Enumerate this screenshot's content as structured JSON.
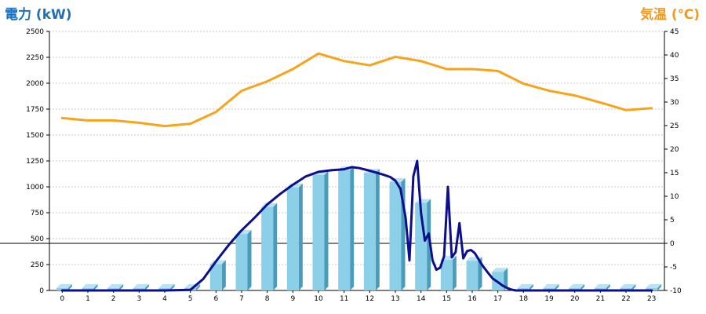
{
  "colors": {
    "power_title": "#1f6fb8",
    "temp_title": "#f39a1e",
    "temp_line": "#f7a41a",
    "power_line": "#0b0f8c",
    "bar_face": "#8ccfe8",
    "bar_side": "#4b9bbd",
    "bar_top": "#b9e2f2",
    "grid": "#c8c8c8"
  },
  "chart_data": {
    "type": "bar+line",
    "left_axis_title": "電力 (kW)",
    "right_axis_title": "気温 (℃)",
    "categories": [
      "0",
      "1",
      "2",
      "3",
      "4",
      "5",
      "6",
      "7",
      "8",
      "9",
      "10",
      "11",
      "12",
      "13",
      "14",
      "15",
      "16",
      "17",
      "18",
      "19",
      "20",
      "21",
      "22",
      "23"
    ],
    "left_ticks": [
      "0",
      "250",
      "500",
      "750",
      "1000",
      "1250",
      "1500",
      "1750",
      "2000",
      "2250",
      "2500"
    ],
    "right_ticks": [
      "-10",
      "-5",
      "0",
      "5",
      "10",
      "15",
      "20",
      "25",
      "30",
      "35",
      "40",
      "45"
    ],
    "ylim_left": [
      0,
      2500
    ],
    "ylim_right": [
      -10,
      45
    ],
    "reference_line_right": 0,
    "grid": true,
    "series": [
      {
        "kind": "bar",
        "axis": "left",
        "values": [
          0,
          0,
          0,
          0,
          0,
          20,
          255,
          545,
          805,
          995,
          1115,
          1160,
          1135,
          1045,
          845,
          295,
          285,
          180,
          0,
          0,
          0,
          0,
          0,
          0
        ]
      },
      {
        "kind": "line",
        "axis": "left",
        "x": [
          0,
          1,
          2,
          3,
          4,
          5,
          5.5,
          6,
          6.5,
          7,
          7.5,
          8,
          8.5,
          9,
          9.5,
          10,
          10.5,
          11,
          11.3,
          11.6,
          12,
          12.5,
          12.8,
          13,
          13.2,
          13.4,
          13.55,
          13.7,
          13.85,
          14,
          14.15,
          14.3,
          14.45,
          14.6,
          14.75,
          14.9,
          15.05,
          15.2,
          15.35,
          15.5,
          15.65,
          15.8,
          15.95,
          16.1,
          16.25,
          16.4,
          16.6,
          16.8,
          17,
          17.2,
          17.35,
          17.5,
          17.7,
          18,
          19,
          20,
          21,
          22,
          23
        ],
        "values": [
          0,
          0,
          0,
          0,
          0,
          5,
          110,
          280,
          440,
          580,
          700,
          830,
          930,
          1020,
          1100,
          1145,
          1160,
          1170,
          1190,
          1180,
          1155,
          1120,
          1095,
          1060,
          980,
          700,
          290,
          1100,
          1250,
          750,
          480,
          550,
          290,
          200,
          220,
          330,
          1000,
          320,
          370,
          650,
          310,
          380,
          390,
          360,
          300,
          240,
          175,
          115,
          80,
          45,
          25,
          10,
          0,
          0,
          0,
          0,
          0,
          0,
          0
        ]
      },
      {
        "kind": "line",
        "axis": "right",
        "x": [
          0,
          1,
          2,
          3,
          4,
          5,
          6,
          7,
          8,
          9,
          10,
          11,
          12,
          13,
          14,
          15,
          16,
          17,
          18,
          19,
          20,
          21,
          22,
          23
        ],
        "values": [
          26.6,
          26.1,
          26.1,
          25.6,
          24.9,
          25.4,
          27.9,
          32.4,
          34.4,
          37.0,
          40.3,
          38.7,
          37.8,
          39.6,
          38.7,
          37.0,
          37.0,
          36.6,
          33.9,
          32.4,
          31.4,
          29.9,
          28.3,
          28.7
        ]
      }
    ]
  }
}
